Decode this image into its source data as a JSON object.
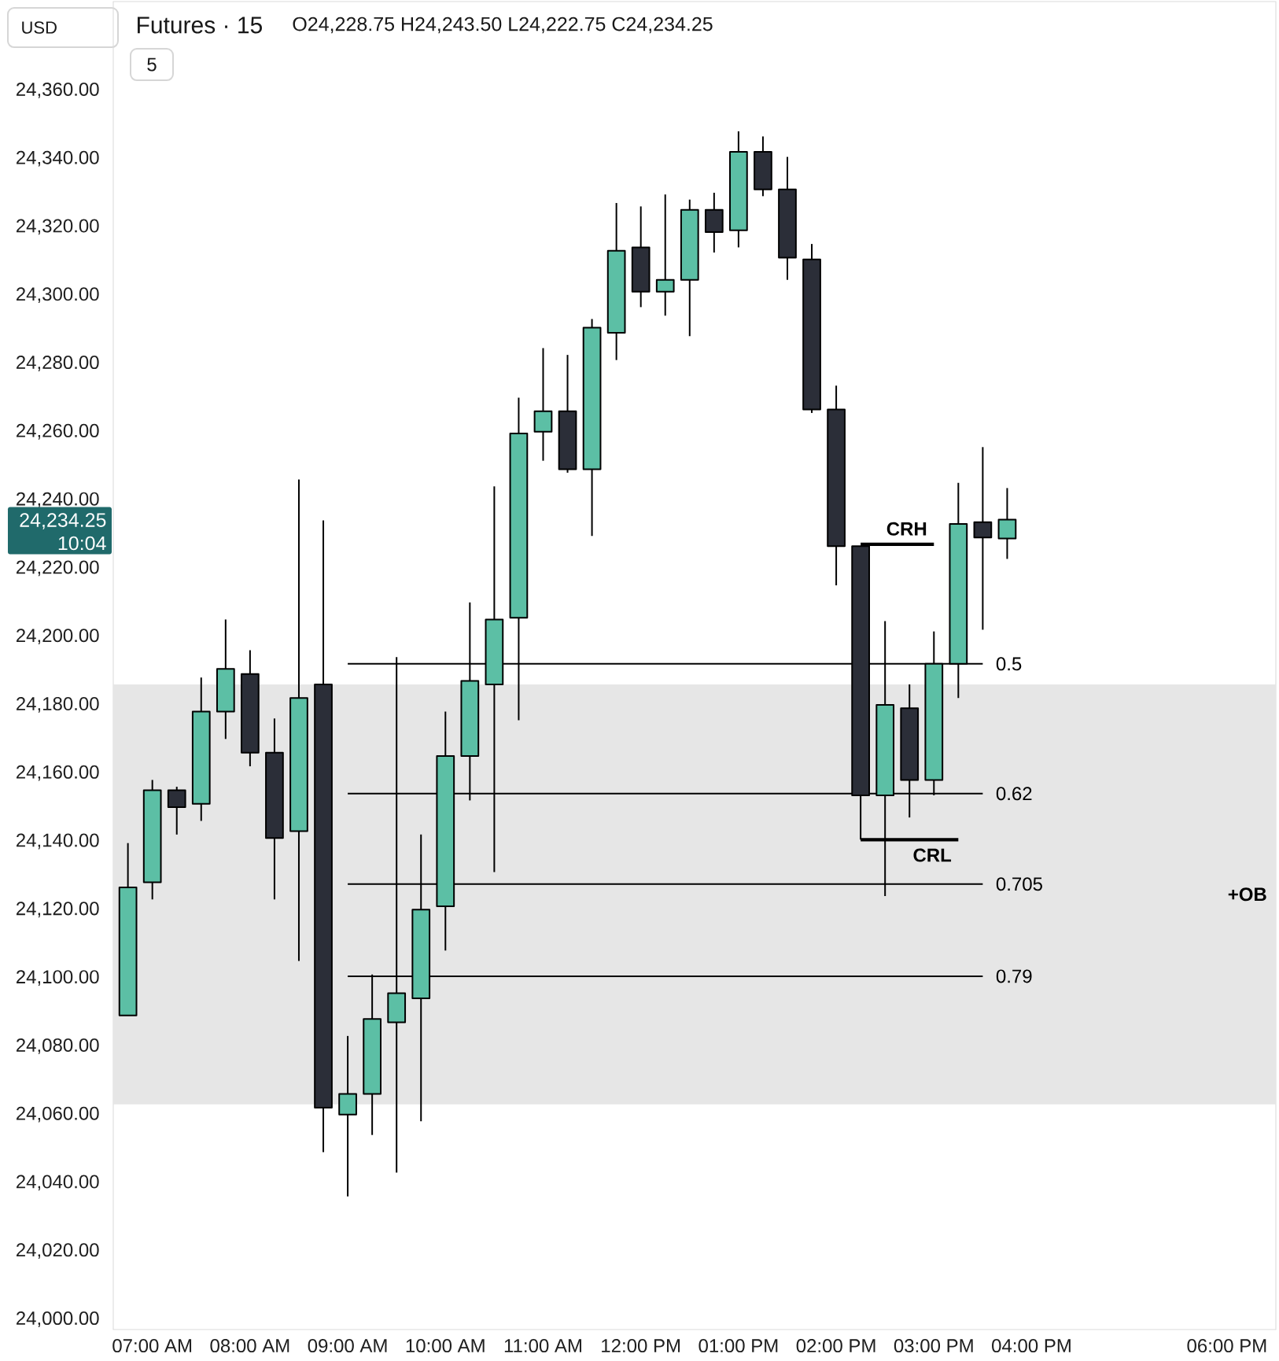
{
  "chart_data": {
    "type": "candlestick",
    "title": "Futures · 15",
    "subtitle": "O24,228.75 H24,243.50 L24,222.75 C24,234.25",
    "x": [
      6.75,
      7,
      7.25,
      7.5,
      7.75,
      8,
      8.25,
      8.5,
      8.75,
      9,
      9.25,
      9.5,
      9.75,
      10,
      10.25,
      10.5,
      10.75,
      11,
      11.25,
      11.5,
      11.75,
      12,
      12.25,
      12.5,
      12.75,
      13,
      13.25,
      13.5,
      13.75,
      14,
      14.25,
      14.5,
      14.75,
      15,
      15.25,
      15.5,
      15.75
    ],
    "ohlc": [
      [
        24089,
        24139.5,
        24089,
        24126.5
      ],
      [
        24128,
        24158,
        24123,
        24155
      ],
      [
        24155,
        24156,
        24142,
        24150
      ],
      [
        24151,
        24188,
        24146,
        24178
      ],
      [
        24178,
        24205,
        24170,
        24190.5
      ],
      [
        24189,
        24196,
        24162,
        24166
      ],
      [
        24166,
        24176,
        24123,
        24141
      ],
      [
        24143,
        24246,
        24105,
        24182
      ],
      [
        24186,
        24234,
        24049,
        24062
      ],
      [
        24060,
        24083,
        24036,
        24066
      ],
      [
        24066,
        24101,
        24054,
        24088
      ],
      [
        24087,
        24194,
        24043,
        24095.5
      ],
      [
        24094,
        24142,
        24058,
        24120
      ],
      [
        24121,
        24178,
        24108,
        24165
      ],
      [
        24165,
        24210,
        24152,
        24187
      ],
      [
        24186,
        24244,
        24131,
        24205
      ],
      [
        24205.5,
        24270,
        24175.5,
        24259.5
      ],
      [
        24260,
        24284.5,
        24251.5,
        24266
      ],
      [
        24266,
        24282.5,
        24248,
        24249
      ],
      [
        24249,
        24293,
        24229.5,
        24290.5
      ],
      [
        24289,
        24327,
        24281,
        24313
      ],
      [
        24314,
        24326,
        24296.5,
        24301
      ],
      [
        24301,
        24329.5,
        24294,
        24304.5
      ],
      [
        24304.5,
        24328,
        24288,
        24325
      ],
      [
        24325,
        24330,
        24312.5,
        24318.5
      ],
      [
        24319,
        24348,
        24314,
        24342
      ],
      [
        24342,
        24346.5,
        24329,
        24331
      ],
      [
        24331,
        24340.5,
        24304.5,
        24311
      ],
      [
        24310.5,
        24315,
        24265.5,
        24266.5
      ],
      [
        24266.5,
        24273.5,
        24215,
        24226.5
      ],
      [
        24226.5,
        24226.5,
        24140.5,
        24153.5
      ],
      [
        24153.5,
        24204.5,
        24124,
        24180
      ],
      [
        24179,
        24186,
        24147,
        24158
      ],
      [
        24158,
        24201.5,
        24153.5,
        24192
      ],
      [
        24192,
        24245,
        24182,
        24233
      ],
      [
        24233.5,
        24255.5,
        24202,
        24229
      ],
      [
        24228.75,
        24243.5,
        24222.75,
        24234.25
      ]
    ],
    "colors": [
      "#5cbfa5",
      "#5cbfa5",
      "#2b2e38",
      "#5cbfa5",
      "#5cbfa5",
      "#2b2e38",
      "#2b2e38",
      "#5cbfa5",
      "#2b2e38",
      "#5cbfa5",
      "#5cbfa5",
      "#5cbfa5",
      "#5cbfa5",
      "#5cbfa5",
      "#5cbfa5",
      "#5cbfa5",
      "#5cbfa5",
      "#5cbfa5",
      "#2b2e38",
      "#5cbfa5",
      "#5cbfa5",
      "#2b2e38",
      "#5cbfa5",
      "#5cbfa5",
      "#2b2e38",
      "#5cbfa5",
      "#2b2e38",
      "#2b2e38",
      "#2b2e38",
      "#2b2e38",
      "#2b2e38",
      "#5cbfa5",
      "#2b2e38",
      "#5cbfa5",
      "#5cbfa5",
      "#2b2e38",
      "#5cbfa5"
    ],
    "series": [
      {
        "type": "line",
        "name": "0.5",
        "color": "#000000",
        "x": [
          9,
          15.5
        ],
        "values": [
          24192,
          24192
        ]
      },
      {
        "type": "line",
        "name": "0.62",
        "color": "#000000",
        "x": [
          9,
          15.5
        ],
        "values": [
          24154,
          24154
        ]
      },
      {
        "type": "line",
        "name": "0.705",
        "color": "#000000",
        "x": [
          9,
          15.5
        ],
        "values": [
          24127.5,
          24127.5
        ]
      },
      {
        "type": "line",
        "name": "0.79",
        "color": "#000000",
        "x": [
          9,
          15.5
        ],
        "values": [
          24100.5,
          24100.5
        ]
      },
      {
        "type": "line",
        "name": "CRH",
        "color": "#000000",
        "x": [
          14.25,
          15
        ],
        "values": [
          24227,
          24227
        ]
      },
      {
        "type": "line",
        "name": "CRL",
        "color": "#000000",
        "x": [
          14.25,
          15.25
        ],
        "values": [
          24140.5,
          24140.5
        ]
      }
    ],
    "bands": [
      {
        "axis": "y",
        "from": 24063,
        "to": 24186,
        "label": "+OB",
        "color": "#e6e6e6"
      }
    ],
    "annotations": [
      "24,234.25",
      "10:04",
      "USD",
      "5"
    ],
    "xlim": [
      6.6,
      18.5
    ],
    "ylim": [
      23997,
      24386
    ],
    "xticks": [
      {
        "value": 7,
        "label": "07:00 AM"
      },
      {
        "value": 8,
        "label": "08:00 AM"
      },
      {
        "value": 9,
        "label": "09:00 AM"
      },
      {
        "value": 10,
        "label": "10:00 AM"
      },
      {
        "value": 11,
        "label": "11:00 AM"
      },
      {
        "value": 12,
        "label": "12:00 PM"
      },
      {
        "value": 13,
        "label": "01:00 PM"
      },
      {
        "value": 14,
        "label": "02:00 PM"
      },
      {
        "value": 15,
        "label": "03:00 PM"
      },
      {
        "value": 16,
        "label": "04:00 PM"
      },
      {
        "value": 18,
        "label": "06:00 PM"
      }
    ],
    "yticks": [
      {
        "value": 24000,
        "label": "24,000.00"
      },
      {
        "value": 24020,
        "label": "24,020.00"
      },
      {
        "value": 24040,
        "label": "24,040.00"
      },
      {
        "value": 24060,
        "label": "24,060.00"
      },
      {
        "value": 24080,
        "label": "24,080.00"
      },
      {
        "value": 24100,
        "label": "24,100.00"
      },
      {
        "value": 24120,
        "label": "24,120.00"
      },
      {
        "value": 24140,
        "label": "24,140.00"
      },
      {
        "value": 24160,
        "label": "24,160.00"
      },
      {
        "value": 24180,
        "label": "24,180.00"
      },
      {
        "value": 24200,
        "label": "24,200.00"
      },
      {
        "value": 24220,
        "label": "24,220.00"
      },
      {
        "value": 24240,
        "label": "24,240.00"
      },
      {
        "value": 24260,
        "label": "24,260.00"
      },
      {
        "value": 24280,
        "label": "24,280.00"
      },
      {
        "value": 24300,
        "label": "24,300.00"
      },
      {
        "value": 24320,
        "label": "24,320.00"
      },
      {
        "value": 24340,
        "label": "24,340.00"
      },
      {
        "value": 24360,
        "label": "24,360.00"
      }
    ]
  }
}
